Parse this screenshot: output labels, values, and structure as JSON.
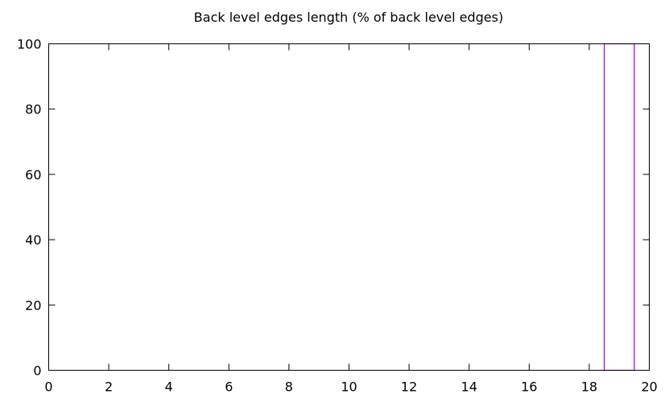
{
  "chart_data": {
    "type": "bar",
    "title": "Back level edges length (% of back level edges)",
    "xlabel": "",
    "ylabel": "",
    "xlim": [
      0,
      20
    ],
    "ylim": [
      0,
      100
    ],
    "x_ticks": [
      0,
      2,
      4,
      6,
      8,
      10,
      12,
      14,
      16,
      18,
      20
    ],
    "y_ticks": [
      0,
      20,
      40,
      60,
      80,
      100
    ],
    "grid": false,
    "legend": "none",
    "bars": [
      {
        "x": 19,
        "width": 1,
        "value": 100
      }
    ],
    "colors": {
      "bar_outline": "#9400d3",
      "axes": "#000000"
    }
  }
}
